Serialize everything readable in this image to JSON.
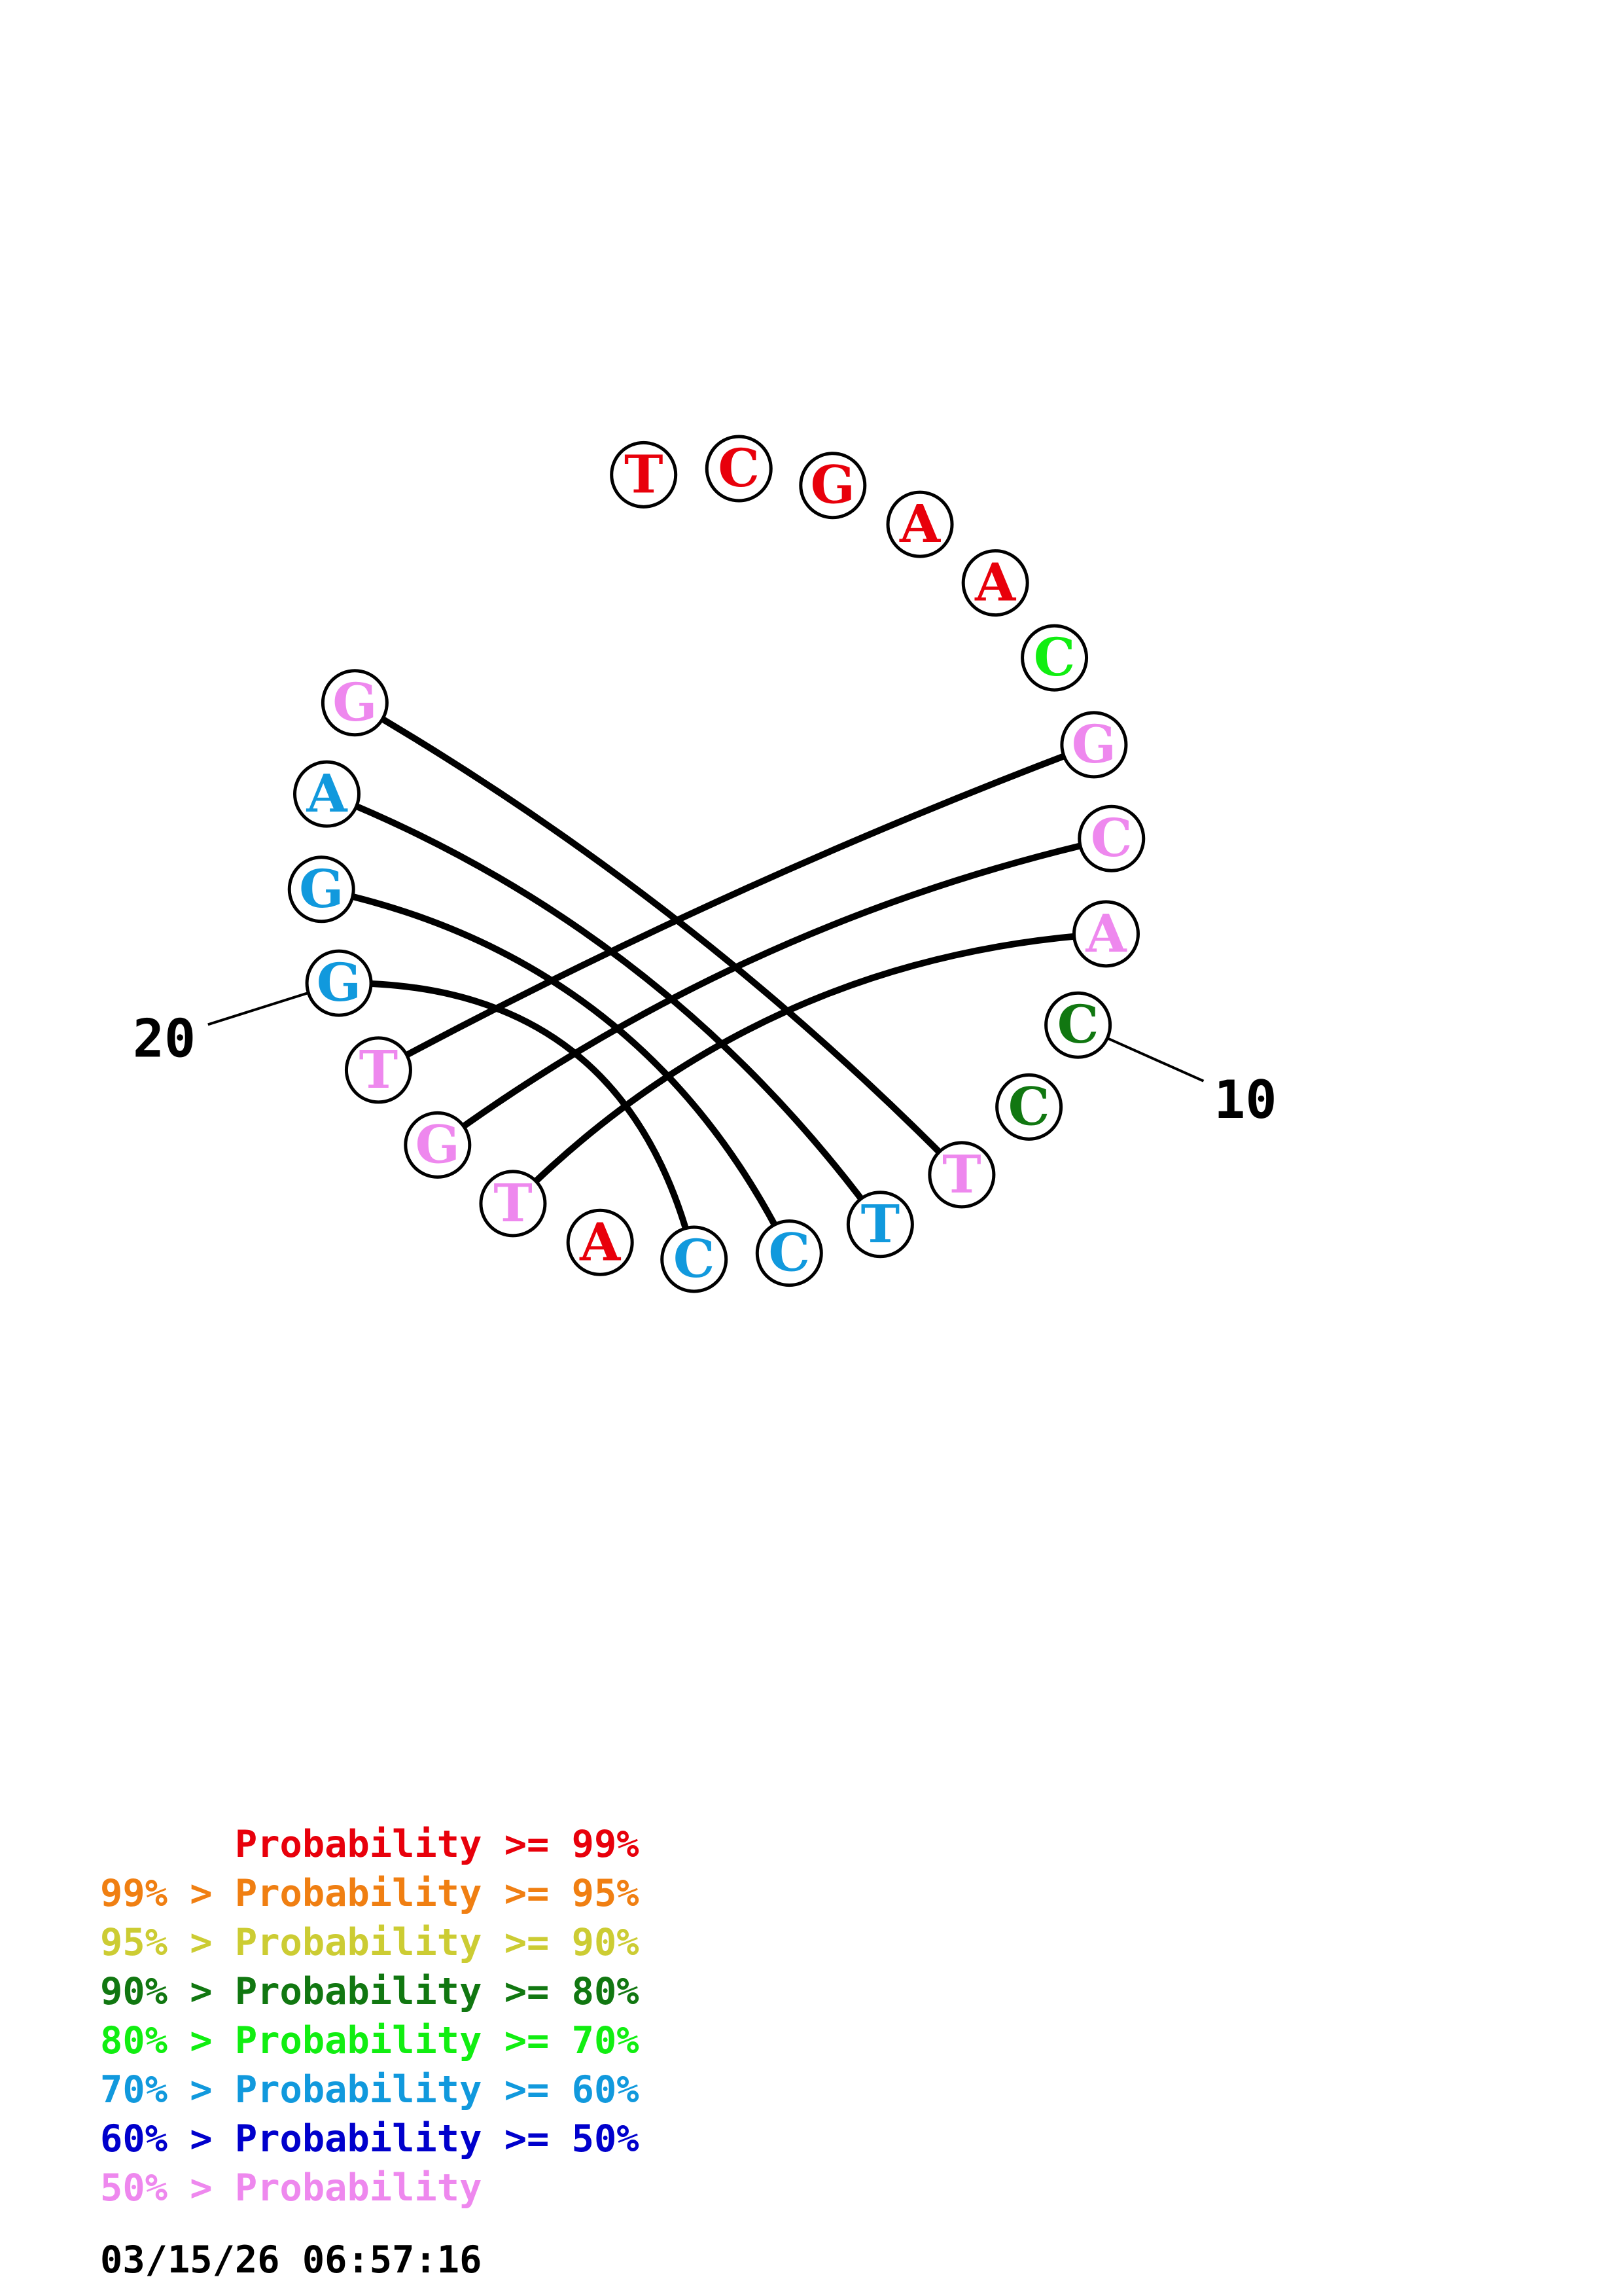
{
  "colors": {
    "p99": "#e8000b",
    "p95": "#f07f12",
    "p90": "#cccc33",
    "p80": "#117711",
    "p70": "#11ee11",
    "p60": "#1199dd",
    "p50": "#0000cc",
    "plt50": "#ee88ee"
  },
  "sequence": [
    {
      "pos": 1,
      "base": "T",
      "prob": "p99"
    },
    {
      "pos": 2,
      "base": "C",
      "prob": "p99"
    },
    {
      "pos": 3,
      "base": "G",
      "prob": "p99"
    },
    {
      "pos": 4,
      "base": "A",
      "prob": "p99"
    },
    {
      "pos": 5,
      "base": "A",
      "prob": "p99"
    },
    {
      "pos": 6,
      "base": "C",
      "prob": "p70"
    },
    {
      "pos": 7,
      "base": "G",
      "prob": "plt50"
    },
    {
      "pos": 8,
      "base": "C",
      "prob": "plt50"
    },
    {
      "pos": 9,
      "base": "A",
      "prob": "plt50"
    },
    {
      "pos": 10,
      "base": "C",
      "prob": "p80"
    },
    {
      "pos": 11,
      "base": "C",
      "prob": "p80"
    },
    {
      "pos": 12,
      "base": "T",
      "prob": "plt50"
    },
    {
      "pos": 13,
      "base": "T",
      "prob": "p60"
    },
    {
      "pos": 14,
      "base": "C",
      "prob": "p60"
    },
    {
      "pos": 15,
      "base": "C",
      "prob": "p60"
    },
    {
      "pos": 16,
      "base": "A",
      "prob": "p99"
    },
    {
      "pos": 17,
      "base": "T",
      "prob": "plt50"
    },
    {
      "pos": 18,
      "base": "G",
      "prob": "plt50"
    },
    {
      "pos": 19,
      "base": "T",
      "prob": "plt50"
    },
    {
      "pos": 20,
      "base": "G",
      "prob": "p60"
    },
    {
      "pos": 21,
      "base": "G",
      "prob": "p60"
    },
    {
      "pos": 22,
      "base": "A",
      "prob": "p60"
    },
    {
      "pos": 23,
      "base": "G",
      "prob": "plt50"
    }
  ],
  "pairs": [
    [
      7,
      19
    ],
    [
      8,
      18
    ],
    [
      9,
      17
    ],
    [
      12,
      23
    ],
    [
      13,
      22
    ],
    [
      14,
      21
    ],
    [
      15,
      20
    ]
  ],
  "tick_labels": [
    {
      "pos": 10,
      "label": "10"
    },
    {
      "pos": 20,
      "label": "20"
    }
  ],
  "legend": [
    {
      "text": "      Probability >= 99%",
      "color": "p99"
    },
    {
      "text": "99% > Probability >= 95%",
      "color": "p95"
    },
    {
      "text": "95% > Probability >= 90%",
      "color": "p90"
    },
    {
      "text": "90% > Probability >= 80%",
      "color": "p80"
    },
    {
      "text": "80% > Probability >= 70%",
      "color": "p70"
    },
    {
      "text": "70% > Probability >= 60%",
      "color": "p60"
    },
    {
      "text": "60% > Probability >= 50%",
      "color": "p50"
    },
    {
      "text": "50% > Probability",
      "color": "plt50"
    }
  ],
  "timestamp": "03/15/26 06:57:16"
}
